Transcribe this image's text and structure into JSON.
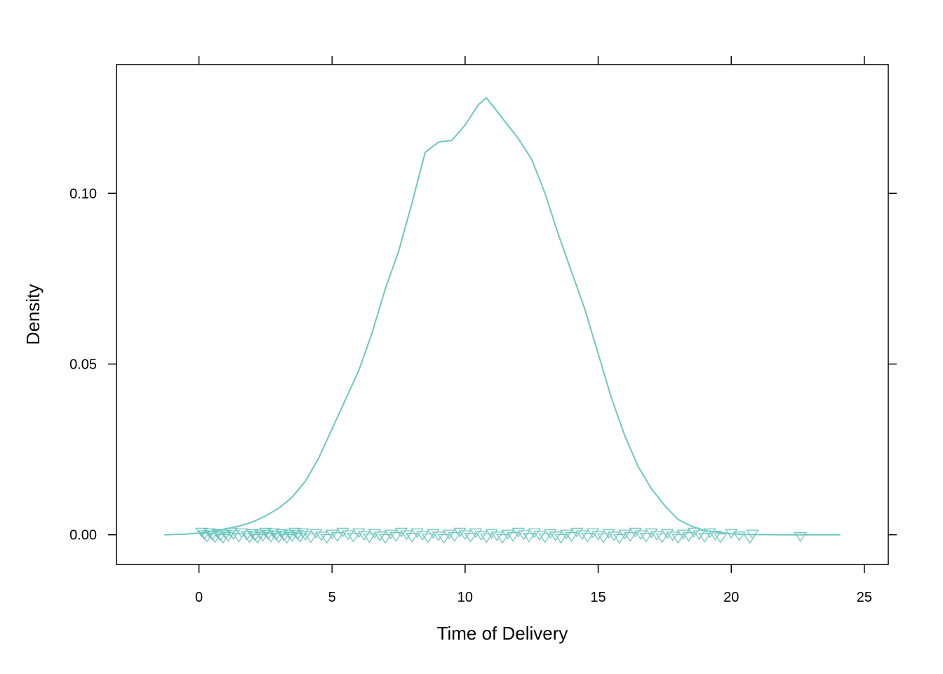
{
  "chart_data": {
    "type": "line",
    "title": "",
    "xlabel": "Time of Delivery",
    "ylabel": "Density",
    "xlim": [
      -3.1,
      25.9
    ],
    "ylim": [
      -0.0087,
      0.1377
    ],
    "x_ticks": [
      0,
      5,
      10,
      15,
      20,
      25
    ],
    "x_tick_labels": [
      "0",
      "5",
      "10",
      "15",
      "20",
      "25"
    ],
    "y_ticks": [
      0.0,
      0.05,
      0.1
    ],
    "y_tick_labels": [
      "0.00",
      "0.05",
      "0.10"
    ],
    "grid": false,
    "legend": "none",
    "series": [
      {
        "kind": "density",
        "color": "#6ec7c1",
        "x": [
          -1.3,
          -0.5,
          0.0,
          0.5,
          1.0,
          1.5,
          2.0,
          2.5,
          3.0,
          3.5,
          4.0,
          4.5,
          5.0,
          5.5,
          6.0,
          6.5,
          7.0,
          7.5,
          8.0,
          8.5,
          9.0,
          9.5,
          10.0,
          10.5,
          10.8,
          11.0,
          11.5,
          12.0,
          12.5,
          13.0,
          13.5,
          14.0,
          14.5,
          15.0,
          15.5,
          16.0,
          16.5,
          17.0,
          17.5,
          18.0,
          18.5,
          19.0,
          19.5,
          20.0,
          20.5,
          21.0,
          22.0,
          23.0,
          24.1
        ],
        "y": [
          0.0,
          0.0002,
          0.0005,
          0.001,
          0.0017,
          0.0025,
          0.0037,
          0.0055,
          0.0078,
          0.011,
          0.0157,
          0.0225,
          0.031,
          0.0395,
          0.048,
          0.059,
          0.072,
          0.083,
          0.097,
          0.112,
          0.115,
          0.1155,
          0.12,
          0.126,
          0.128,
          0.126,
          0.121,
          0.116,
          0.11,
          0.1,
          0.088,
          0.077,
          0.066,
          0.053,
          0.04,
          0.029,
          0.02,
          0.0135,
          0.0085,
          0.0045,
          0.0025,
          0.0013,
          0.0007,
          0.0003,
          0.0001,
          5e-05,
          0.0,
          0.0,
          0.0
        ]
      }
    ],
    "rug_points": {
      "marker": "down-triangle",
      "color": "#6ec7c1",
      "x": [
        0.1,
        0.2,
        0.3,
        0.4,
        0.5,
        0.6,
        0.7,
        0.8,
        0.9,
        1.0,
        1.1,
        1.2,
        1.3,
        1.5,
        1.6,
        1.8,
        1.9,
        2.0,
        2.1,
        2.2,
        2.3,
        2.4,
        2.5,
        2.6,
        2.7,
        2.8,
        2.9,
        3.0,
        3.1,
        3.2,
        3.3,
        3.4,
        3.5,
        3.6,
        3.7,
        3.8,
        3.9,
        4.0,
        4.2,
        4.4,
        4.6,
        4.8,
        5.0,
        5.2,
        5.4,
        5.6,
        5.8,
        6.0,
        6.2,
        6.4,
        6.6,
        6.8,
        7.0,
        7.2,
        7.4,
        7.6,
        7.8,
        8.0,
        8.2,
        8.4,
        8.6,
        8.8,
        9.0,
        9.2,
        9.4,
        9.6,
        9.8,
        10.0,
        10.2,
        10.4,
        10.6,
        10.8,
        11.0,
        11.2,
        11.4,
        11.6,
        11.8,
        12.0,
        12.2,
        12.4,
        12.6,
        12.8,
        13.0,
        13.2,
        13.4,
        13.6,
        13.8,
        14.0,
        14.2,
        14.4,
        14.6,
        14.8,
        15.0,
        15.2,
        15.4,
        15.6,
        15.8,
        16.0,
        16.2,
        16.4,
        16.6,
        16.8,
        17.0,
        17.2,
        17.4,
        17.6,
        17.8,
        18.0,
        18.2,
        18.4,
        18.6,
        18.8,
        19.0,
        19.2,
        19.4,
        19.6,
        20.0,
        20.3,
        20.7,
        20.8,
        22.6
      ]
    }
  }
}
